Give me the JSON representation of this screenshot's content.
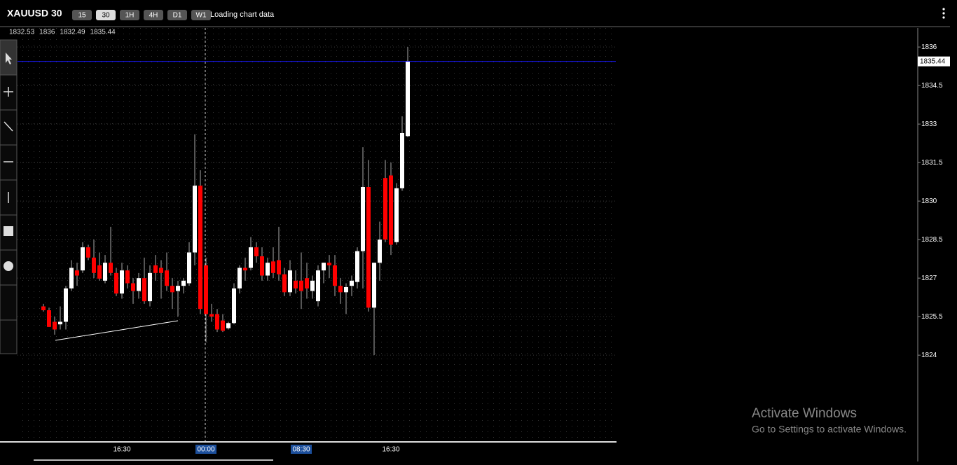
{
  "chart_data": {
    "type": "candlestick",
    "title": "XAUUSD 30",
    "categories": [
      null,
      null,
      null,
      null,
      null,
      null,
      null,
      null,
      null,
      null,
      null,
      null,
      null,
      null,
      "16:30",
      null,
      null,
      null,
      null,
      null,
      null,
      null,
      null,
      null,
      null,
      null,
      null,
      null,
      null,
      "00:00",
      null,
      null,
      null,
      null,
      null,
      null,
      null,
      null,
      null,
      null,
      null,
      null,
      null,
      null,
      null,
      null,
      "08:30",
      null,
      null,
      null,
      null,
      null,
      null,
      null,
      null,
      null,
      null,
      null,
      null,
      null,
      null,
      null,
      "16:30",
      null,
      null,
      null
    ],
    "open": [
      1825.9,
      1825.75,
      1825.3,
      1825.2,
      1825.3,
      1826.6,
      1827.3,
      1827.3,
      1828.2,
      1827.8,
      1827.5,
      1826.9,
      1827.6,
      1827.2,
      1826.4,
      1827.3,
      1826.8,
      1826.5,
      1827.0,
      1826.1,
      1827.5,
      1827.4,
      1827.3,
      1826.7,
      1826.5,
      1826.7,
      1826.8,
      1828.0,
      1830.6,
      1827.5,
      1825.6,
      1825.6,
      1825.35,
      1825.05,
      1825.25,
      1826.6,
      1827.4,
      1827.4,
      1828.2,
      1827.85,
      1827.1,
      1827.65,
      1827.7,
      1827.15,
      1826.45,
      1826.9,
      1826.9,
      1827.0,
      1826.5,
      1826.1,
      1827.3,
      1827.6,
      1827.5,
      1826.7,
      1826.45,
      1826.7,
      1826.85,
      1828.05,
      1830.55,
      1825.85,
      1827.6,
      1830.9,
      1831.0,
      1828.4,
      1830.5,
      1832.53
    ],
    "high": [
      1826.0,
      1825.85,
      1825.5,
      1825.9,
      1826.7,
      1827.7,
      1827.6,
      1828.4,
      1828.3,
      1828.5,
      1828.0,
      1827.9,
      1829.0,
      1827.4,
      1827.6,
      1827.5,
      1827.0,
      1827.2,
      1827.8,
      1827.5,
      1827.9,
      1827.7,
      1828.0,
      1827.0,
      1826.9,
      1827.0,
      1828.4,
      1832.6,
      1831.2,
      1827.8,
      1826.0,
      1825.8,
      1825.6,
      1825.3,
      1826.8,
      1827.5,
      1827.8,
      1828.6,
      1828.4,
      1828.2,
      1827.8,
      1828.2,
      1829.0,
      1827.4,
      1827.7,
      1827.3,
      1828.0,
      1827.6,
      1827.1,
      1827.5,
      1827.6,
      1827.9,
      1827.9,
      1827.0,
      1826.8,
      1827.1,
      1828.2,
      1832.1,
      1831.6,
      1827.6,
      1829.2,
      1831.6,
      1831.5,
      1830.7,
      1833.3,
      1836
    ],
    "low": [
      1825.7,
      1825.1,
      1824.8,
      1825.0,
      1825.0,
      1826.5,
      1826.7,
      1827.2,
      1827.7,
      1827.0,
      1826.9,
      1826.8,
      1827.1,
      1826.3,
      1826.2,
      1826.6,
      1826.0,
      1826.2,
      1826.0,
      1825.9,
      1826.9,
      1826.2,
      1826.5,
      1825.8,
      1825.5,
      1826.4,
      1826.7,
      1827.5,
      1825.6,
      1824.5,
      1825.3,
      1824.9,
      1824.9,
      1825.0,
      1825.2,
      1826.4,
      1826.9,
      1827.3,
      1827.6,
      1826.9,
      1826.9,
      1827.0,
      1826.9,
      1826.3,
      1826.3,
      1826.4,
      1825.8,
      1826.2,
      1826.2,
      1825.9,
      1826.8,
      1827.0,
      1826.3,
      1826.0,
      1825.6,
      1826.3,
      1826.6,
      1826.6,
      1825.7,
      1824.0,
      1826.9,
      1828.4,
      1827.9,
      1828.3,
      1830.4,
      1832.49
    ],
    "close": [
      1825.75,
      1825.1,
      1825.0,
      1825.3,
      1826.6,
      1827.4,
      1827.1,
      1828.2,
      1827.8,
      1827.2,
      1826.98,
      1827.6,
      1827.2,
      1826.4,
      1827.3,
      1826.8,
      1826.5,
      1827.0,
      1826.1,
      1827.2,
      1827.2,
      1827.2,
      1826.7,
      1826.45,
      1826.7,
      1826.9,
      1828.0,
      1830.6,
      1825.8,
      1825.6,
      1825.5,
      1825.0,
      1824.95,
      1825.25,
      1826.6,
      1827.4,
      1827.3,
      1828.2,
      1827.85,
      1827.1,
      1827.6,
      1827.2,
      1827.15,
      1826.45,
      1827.3,
      1826.6,
      1826.5,
      1826.6,
      1826.9,
      1827.3,
      1827.6,
      1827.5,
      1826.7,
      1826.45,
      1826.65,
      1826.9,
      1828.05,
      1830.55,
      1825.85,
      1827.6,
      1828.5,
      1828.5,
      1828.3,
      1830.5,
      1832.65,
      1835.44
    ],
    "up_color": "#ffffff",
    "down_color": "#ff0000",
    "last_price_color": "#1a1aff",
    "ylim": [
      1820.65,
      1836.74
    ],
    "yticks": [
      1824,
      1825.5,
      1827,
      1828.5,
      1830,
      1831.5,
      1833,
      1834.5,
      1836
    ],
    "grid": true,
    "x_highlight": [
      29,
      46
    ]
  },
  "toolbar": {
    "timeframes": [
      "15",
      "30",
      "1H",
      "4H",
      "D1",
      "W1"
    ],
    "active_index": 1,
    "status": "Loading chart data"
  },
  "watermark": {
    "title": "Activate Windows",
    "subtitle": "Go to Settings to activate Windows."
  }
}
